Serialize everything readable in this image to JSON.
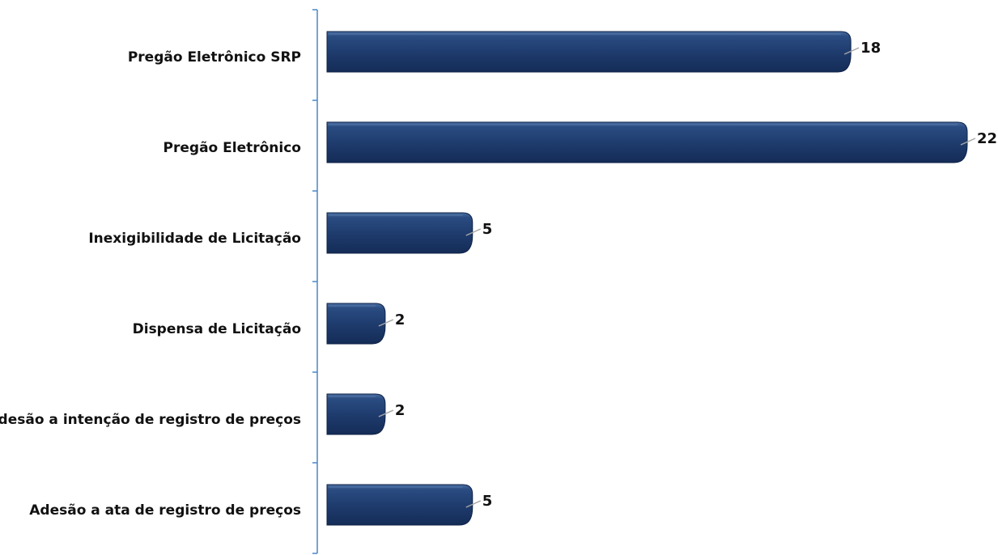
{
  "chart_data": {
    "type": "bar",
    "orientation": "horizontal",
    "categories": [
      "Pregão Eletrônico SRP",
      "Pregão Eletrônico",
      "Inexigibilidade de Licitação",
      "Dispensa de Licitação",
      "Adesão a intenção de registro de preços",
      "Adesão a ata de registro de preços"
    ],
    "values": [
      18,
      22,
      5,
      2,
      2,
      5
    ],
    "data_labels": [
      "18",
      "22",
      "5",
      "2",
      "2",
      "5"
    ],
    "title": "",
    "xlabel": "",
    "ylabel": "",
    "xlim": [
      0,
      22
    ],
    "grid": false,
    "legend": "none",
    "data_labels_shown": true
  },
  "colors": {
    "bar_fill": "#1f3c6e",
    "bar_top_highlight": "#4a6da0",
    "bar_shadow": "#0f2347",
    "axis": "#4a86c8",
    "leader_line": "#a6a6a6",
    "text": "#111111"
  }
}
